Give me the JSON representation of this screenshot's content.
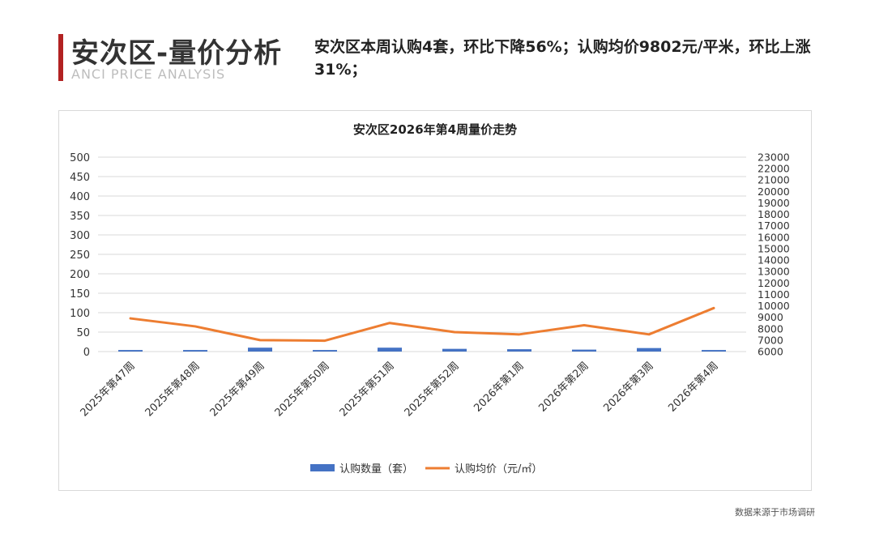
{
  "header": {
    "title": "安次区-量价分析",
    "subtitle_en": "ANCI PRICE ANALYSIS",
    "summary": "安次区本周认购4套，环比下降56%；认购均价9802元/平米，环比上涨31%；"
  },
  "footer": {
    "source": "数据来源于市场调研"
  },
  "colors": {
    "bar": "#4472c4",
    "line": "#ed7d31",
    "accent": "#b22222",
    "grid": "#d9d9d9"
  },
  "chart_data": {
    "type": "bar+line",
    "title": "安次区2026年第4周量价走势",
    "categories": [
      "2025年第47周",
      "2025年第48周",
      "2025年第49周",
      "2025年第50周",
      "2025年第51周",
      "2025年第52周",
      "2026年第1周",
      "2026年第2周",
      "2026年第3周",
      "2026年第4周"
    ],
    "series": [
      {
        "name": "认购数量（套）",
        "type": "bar",
        "axis": "left",
        "values": [
          4,
          4,
          10,
          4,
          10,
          7,
          6,
          5,
          9,
          4
        ]
      },
      {
        "name": "认购均价（元/㎡）",
        "type": "line",
        "axis": "right",
        "values": [
          8900,
          8200,
          7000,
          6950,
          8500,
          7700,
          7500,
          8300,
          7500,
          9802
        ]
      }
    ],
    "y_left": {
      "ylim": [
        0,
        500
      ],
      "ticks": [
        0,
        50,
        100,
        150,
        200,
        250,
        300,
        350,
        400,
        450,
        500
      ]
    },
    "y_right": {
      "ylim": [
        6000,
        23000
      ],
      "ticks": [
        6000,
        7000,
        8000,
        9000,
        10000,
        11000,
        12000,
        13000,
        14000,
        15000,
        16000,
        17000,
        18000,
        19000,
        20000,
        21000,
        22000,
        23000
      ]
    },
    "grid": true,
    "legend_position": "bottom"
  }
}
